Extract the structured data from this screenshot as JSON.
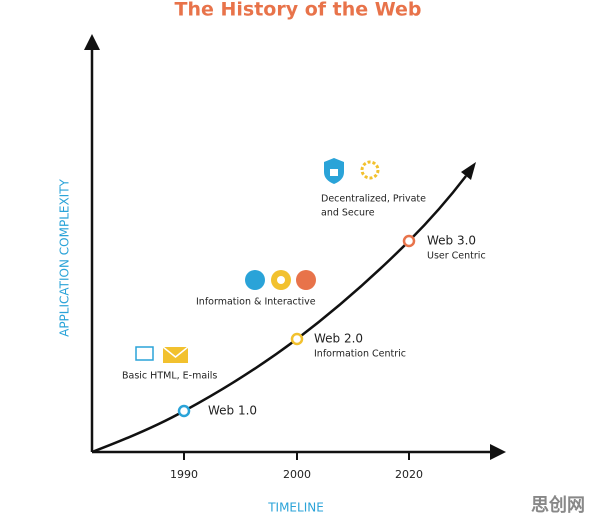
{
  "title": "The History of the Web",
  "y_axis_label": "APPLICATION COMPLEXITY",
  "x_axis_label": "TIMELINE",
  "ticks": [
    "1990",
    "2000",
    "2020"
  ],
  "milestones": [
    {
      "label": "Web 1.0"
    },
    {
      "label": "Web 2.0",
      "description": "Information Centric"
    },
    {
      "label": "Web 3.0",
      "description": "User Centric"
    }
  ],
  "features": [
    {
      "lines": [
        "Basic HTML, E-mails"
      ]
    },
    {
      "lines": [
        "Information & Interactive"
      ]
    },
    {
      "lines": [
        "Decentralized, Private",
        "and Secure"
      ]
    }
  ],
  "watermark": "思创网"
}
